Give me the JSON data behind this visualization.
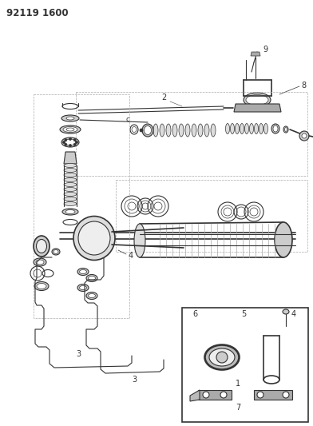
{
  "title": "92119 1600",
  "bg_color": "#ffffff",
  "lc": "#333333",
  "gray": "#888888",
  "darkgray": "#555555",
  "title_fontsize": 8.5,
  "label_fontsize": 7.5
}
